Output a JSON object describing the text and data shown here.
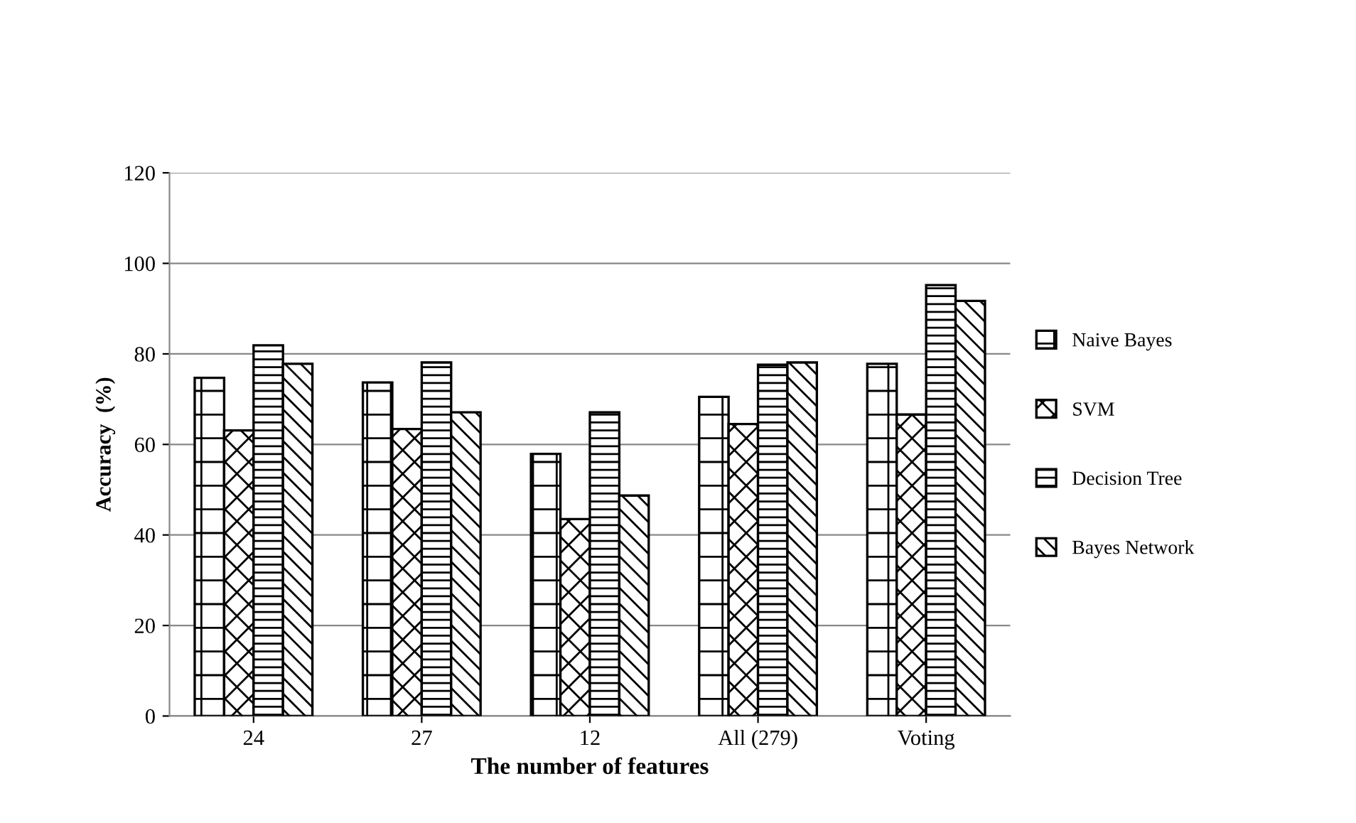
{
  "chart_data": {
    "type": "bar",
    "xlabel": "The number of features",
    "ylabel": "Accuracy  (%)",
    "categories": [
      "24",
      "27",
      "12",
      "All (279)",
      "Voting"
    ],
    "series": [
      {
        "name": "Naive Bayes",
        "color": "#000000",
        "values": [
          74.7,
          73.7,
          57.9,
          70.5,
          77.8
        ]
      },
      {
        "name": "SVM",
        "color": "#000000",
        "values": [
          63.1,
          63.4,
          43.5,
          64.5,
          66.6
        ]
      },
      {
        "name": "Decision Tree",
        "color": "#000000",
        "values": [
          81.9,
          78.1,
          67.1,
          77.6,
          95.2
        ]
      },
      {
        "name": "Bayes Network",
        "color": "#000000",
        "values": [
          77.8,
          67.1,
          48.7,
          78.1,
          91.7
        ]
      }
    ],
    "ylim": [
      0,
      120
    ],
    "yticks": [
      0,
      20,
      40,
      60,
      80,
      100,
      120
    ],
    "grid": "y",
    "legend": "right"
  }
}
